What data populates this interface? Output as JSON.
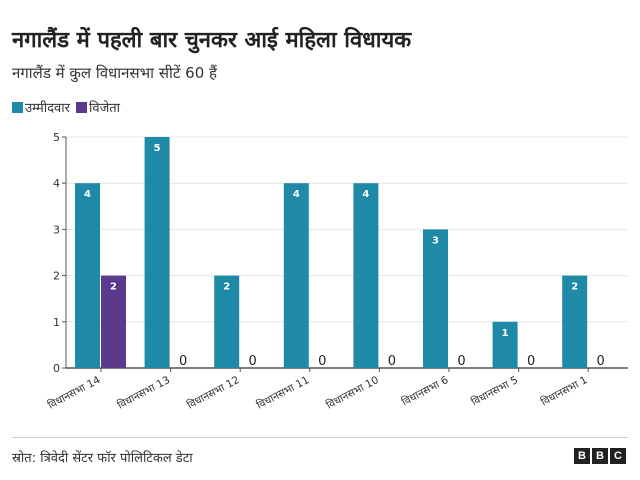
{
  "chart_data": {
    "type": "bar",
    "title": "नगालैंड में पहली बार चुनकर आई महिला विधायक",
    "subtitle": "नगालैंड में कुल विधानसभा सीटें 60 हैं",
    "categories": [
      "विधानसभा 14",
      "विधानसभा 13",
      "विधानसभा 12",
      "विधानसभा 11",
      "विधानसभा 10",
      "विधानसभा 6",
      "विधानसभा 5",
      "विधानसभा 1"
    ],
    "series": [
      {
        "name": "उम्मीदवार",
        "color": "#1e8aa8",
        "values": [
          4,
          5,
          2,
          4,
          4,
          3,
          1,
          2
        ]
      },
      {
        "name": "विजेता",
        "color": "#5b3a8c",
        "values": [
          2,
          0,
          0,
          0,
          0,
          0,
          0,
          0
        ]
      }
    ],
    "yticks": [
      0,
      1,
      2,
      3,
      4,
      5
    ],
    "ylim": [
      0,
      5
    ],
    "grid": true,
    "legend": "top-left",
    "source": "स्रोत: त्रिवेदी सेंटर फॉर पोलिटिकल डेटा",
    "logo": [
      "B",
      "B",
      "C"
    ]
  }
}
